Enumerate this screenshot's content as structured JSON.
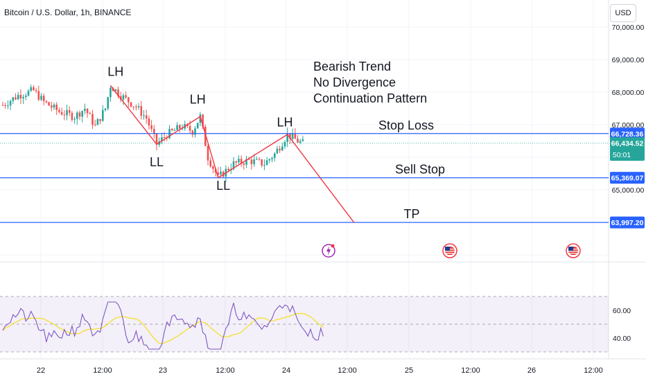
{
  "header": {
    "symbol_title": "Bitcoin / U.S. Dollar, 1h, BINANCE",
    "currency_button": "USD"
  },
  "chart_data": {
    "type": "candlestick",
    "price_axis": {
      "min": 63000,
      "max": 70000,
      "ticks": [
        {
          "value": 70000,
          "label": "70,000.00"
        },
        {
          "value": 69000,
          "label": "69,000.00"
        },
        {
          "value": 68000,
          "label": "68,000.00"
        },
        {
          "value": 67000,
          "label": "67,000.00"
        },
        {
          "value": 65000,
          "label": "65,000.00"
        }
      ]
    },
    "time_axis": {
      "ticks": [
        "22",
        "12:00",
        "23",
        "12:00",
        "24",
        "12:00",
        "25",
        "12:00",
        "26",
        "12:00"
      ]
    },
    "price_badges": [
      {
        "label": "66,728.36",
        "value": 66728.36,
        "color": "#2962ff"
      },
      {
        "label": "66,434.52",
        "sublabel": "50:01",
        "value": 66434.52,
        "color": "#26a69a"
      },
      {
        "label": "65,369.07",
        "value": 65369.07,
        "color": "#2962ff"
      },
      {
        "label": "63,997.20",
        "value": 63997.2,
        "color": "#2962ff"
      }
    ],
    "horizontal_lines": [
      {
        "value": 66728.36,
        "label": "Stop Loss"
      },
      {
        "value": 65369.07,
        "label": "Sell Stop"
      },
      {
        "value": 63997.2,
        "label": "TP"
      }
    ],
    "annotations": {
      "trend_text": [
        "Bearish Trend",
        "No Divergence",
        "Continuation Pattern"
      ],
      "swing_labels": [
        {
          "text": "LH",
          "t": 44,
          "v": 68500
        },
        {
          "text": "LL",
          "t": 60,
          "v": 65720
        },
        {
          "text": "LH",
          "t": 76,
          "v": 67650
        },
        {
          "text": "LL",
          "t": 86,
          "v": 65000
        },
        {
          "text": "LH",
          "t": 110,
          "v": 66950
        }
      ]
    },
    "zigzag": [
      {
        "t": 42,
        "v": 68200
      },
      {
        "t": 60,
        "v": 66400
      },
      {
        "t": 77,
        "v": 67250
      },
      {
        "t": 84,
        "v": 65370
      },
      {
        "t": 111,
        "v": 66700
      },
      {
        "t": 137,
        "v": 63990
      }
    ],
    "rsi": {
      "levels": [
        {
          "value": 60,
          "label": "60.00"
        },
        {
          "value": 40,
          "label": "40.00"
        }
      ],
      "band": [
        30,
        70
      ],
      "line_color": "#7e57c2",
      "ma_color": "#f5e03b"
    },
    "colors": {
      "up": "#26a69a",
      "down": "#ef5350",
      "lines": "#2962ff",
      "zigzag": "#f23645"
    },
    "events": [
      {
        "icon": "lightning-event-icon",
        "t": 117
      },
      {
        "icon": "us-flag-event-icon",
        "t": 161
      },
      {
        "icon": "us-flag-event-icon",
        "t": 205
      }
    ]
  }
}
